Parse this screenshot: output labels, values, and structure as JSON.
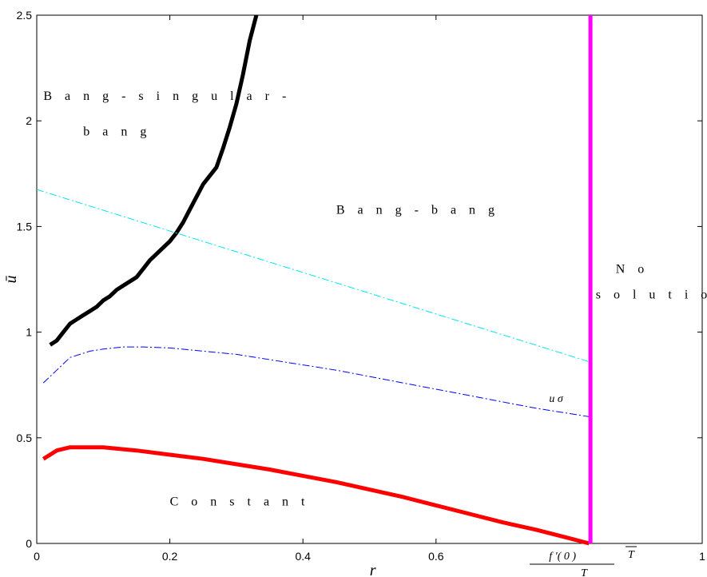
{
  "chart_data": {
    "type": "line",
    "xlabel": "r",
    "ylabel": "ū",
    "xlim": [
      0,
      1
    ],
    "ylim": [
      0,
      2.5
    ],
    "x_ticks": [
      "0",
      "0.2",
      "0.4",
      "0.6",
      "1"
    ],
    "y_ticks": [
      "0",
      "0.5",
      "1",
      "1.5",
      "2",
      "2.5"
    ],
    "x_special_tick": {
      "value": 0.832,
      "numerator": "f ′( 0 ) ",
      "overline_symbol": "T",
      "denominator": "T"
    },
    "grid": false,
    "series": [
      {
        "color": "#000000",
        "style": "solid-thick",
        "x": [
          0.02,
          0.03,
          0.04,
          0.05,
          0.06,
          0.07,
          0.08,
          0.09,
          0.1,
          0.11,
          0.12,
          0.13,
          0.14,
          0.15,
          0.16,
          0.17,
          0.18,
          0.19,
          0.2,
          0.21,
          0.22,
          0.23,
          0.24,
          0.25,
          0.26,
          0.27,
          0.28,
          0.29,
          0.3,
          0.31,
          0.32,
          0.33
        ],
        "y": [
          0.94,
          0.96,
          1.0,
          1.04,
          1.06,
          1.08,
          1.1,
          1.12,
          1.15,
          1.17,
          1.2,
          1.22,
          1.24,
          1.26,
          1.3,
          1.34,
          1.37,
          1.4,
          1.43,
          1.47,
          1.52,
          1.58,
          1.64,
          1.7,
          1.74,
          1.78,
          1.87,
          1.97,
          2.08,
          2.22,
          2.38,
          2.5
        ]
      },
      {
        "color": "#ff0000",
        "style": "solid-thick",
        "x": [
          0.01,
          0.03,
          0.05,
          0.1,
          0.15,
          0.2,
          0.25,
          0.3,
          0.35,
          0.4,
          0.45,
          0.5,
          0.55,
          0.6,
          0.65,
          0.7,
          0.75,
          0.8,
          0.83
        ],
        "y": [
          0.4,
          0.44,
          0.455,
          0.455,
          0.44,
          0.42,
          0.4,
          0.375,
          0.35,
          0.32,
          0.29,
          0.255,
          0.22,
          0.18,
          0.14,
          0.1,
          0.065,
          0.025,
          0.0
        ]
      },
      {
        "color": "#00e5ee",
        "style": "dash-dot",
        "x": [
          0.0,
          0.83
        ],
        "y": [
          1.675,
          0.86
        ]
      },
      {
        "color": "#0000ff",
        "style": "dash-dot",
        "x": [
          0.01,
          0.03,
          0.05,
          0.08,
          0.1,
          0.13,
          0.16,
          0.2,
          0.25,
          0.3,
          0.35,
          0.4,
          0.45,
          0.5,
          0.55,
          0.6,
          0.65,
          0.7,
          0.75,
          0.8,
          0.83
        ],
        "y": [
          0.76,
          0.82,
          0.88,
          0.91,
          0.92,
          0.93,
          0.93,
          0.925,
          0.91,
          0.895,
          0.87,
          0.845,
          0.82,
          0.79,
          0.76,
          0.73,
          0.7,
          0.67,
          0.64,
          0.615,
          0.6
        ]
      },
      {
        "color": "#ff00ff",
        "style": "solid-thick",
        "x": [
          0.832,
          0.832
        ],
        "y": [
          0,
          2.5
        ]
      }
    ],
    "annotations": [
      {
        "text": "B a n g - s i n g u l a r -",
        "x": 0.01,
        "y": 2.1
      },
      {
        "text": "b a n g",
        "x": 0.07,
        "y": 1.93
      },
      {
        "text": "B a n g - b a n g",
        "x": 0.45,
        "y": 1.56
      },
      {
        "text": "N  o",
        "x": 0.87,
        "y": 1.28
      },
      {
        "text": "s o l u t i o n",
        "x": 0.84,
        "y": 1.16
      },
      {
        "text": "C o n s t a n t",
        "x": 0.2,
        "y": 0.18
      },
      {
        "text": "u  σ",
        "x": 0.77,
        "y": 0.67
      }
    ]
  }
}
